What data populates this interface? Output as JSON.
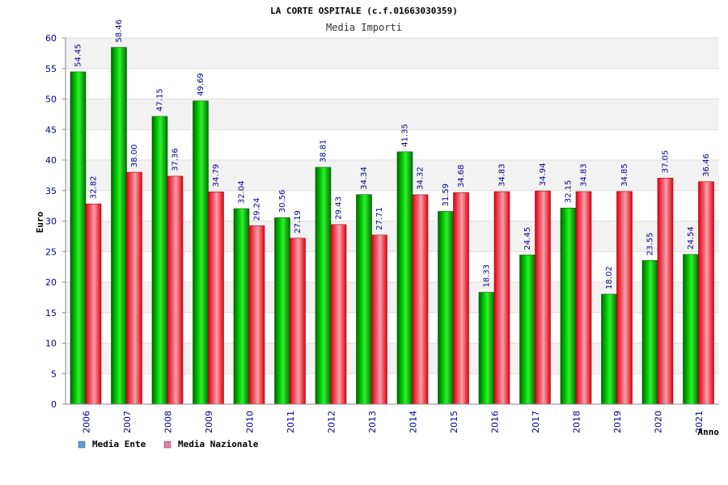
{
  "chart_data": {
    "type": "bar",
    "title": "LA CORTE OSPITALE (c.f.01663030359)",
    "subtitle": "Media Importi",
    "xlabel": "Anno",
    "ylabel": "Euro",
    "ylim": [
      0,
      60
    ],
    "yticks": [
      "0",
      "5",
      "10",
      "15",
      "20",
      "25",
      "30",
      "35",
      "40",
      "45",
      "50",
      "55",
      "60"
    ],
    "grid": true,
    "legend_position": "bottom-left",
    "categories": [
      "2006",
      "2007",
      "2008",
      "2009",
      "2010",
      "2011",
      "2012",
      "2013",
      "2014",
      "2015",
      "2016",
      "2017",
      "2018",
      "2019",
      "2020",
      "2021"
    ],
    "series": [
      {
        "name": "Media Ente",
        "color": "#00a000",
        "legend_color": "#5b9bd5",
        "values": [
          54.45,
          58.46,
          47.15,
          49.69,
          32.04,
          30.56,
          38.81,
          34.34,
          41.35,
          31.59,
          18.33,
          24.45,
          32.15,
          18.02,
          23.55,
          24.54
        ],
        "labels": [
          "54.45",
          "58.46",
          "47.15",
          "49.69",
          "32.04",
          "30.56",
          "38.81",
          "34.34",
          "41.35",
          "31.59",
          "18.33",
          "24.45",
          "32.15",
          "18.02",
          "23.55",
          "24.54"
        ]
      },
      {
        "name": "Media Nazionale",
        "color": "#e8202a",
        "legend_color": "#e57fa8",
        "values": [
          32.82,
          38.0,
          37.36,
          34.79,
          29.24,
          27.19,
          29.43,
          27.71,
          34.32,
          34.68,
          34.83,
          34.94,
          34.83,
          34.85,
          37.05,
          36.46
        ],
        "labels": [
          "32.82",
          "38.00",
          "37.36",
          "34.79",
          "29.24",
          "27.19",
          "29.43",
          "27.71",
          "34.32",
          "34.68",
          "34.83",
          "34.94",
          "34.83",
          "34.85",
          "37.05",
          "36.46"
        ]
      }
    ]
  }
}
